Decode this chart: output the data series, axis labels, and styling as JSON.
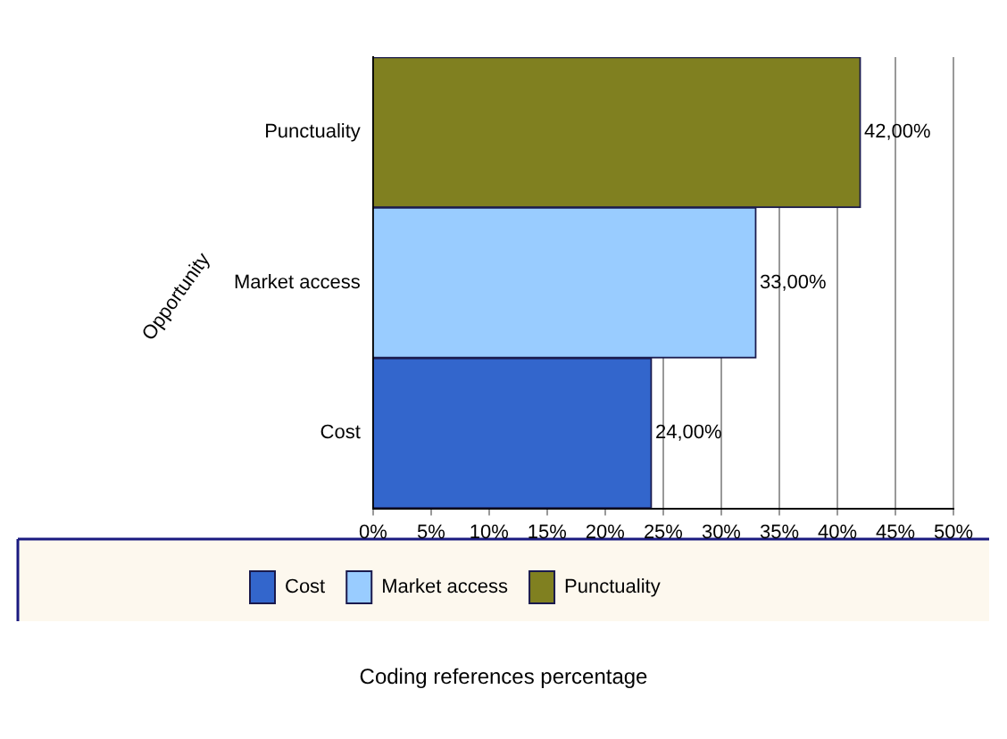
{
  "chart_data": {
    "type": "bar",
    "orientation": "horizontal",
    "stacked": true,
    "categories": [
      "Punctuality",
      "Market access",
      "Cost"
    ],
    "series": [
      {
        "name": "Cost",
        "color": "#3366cc",
        "values": [
          null,
          null,
          24
        ],
        "value_labels": [
          null,
          null,
          "24,00%"
        ]
      },
      {
        "name": "Market access",
        "color": "#99ccff",
        "values": [
          null,
          33,
          null
        ],
        "value_labels": [
          null,
          "33,00%",
          null
        ]
      },
      {
        "name": "Punctuality",
        "color": "#808020",
        "values": [
          42,
          null,
          null
        ],
        "value_labels": [
          "42,00%",
          null,
          null
        ]
      }
    ],
    "xlim": [
      0,
      50
    ],
    "xticks": [
      {
        "value": 0,
        "label": "0%"
      },
      {
        "value": 5,
        "label": "5%"
      },
      {
        "value": 10,
        "label": "10%"
      },
      {
        "value": 15,
        "label": "15%"
      },
      {
        "value": 20,
        "label": "20%"
      },
      {
        "value": 25,
        "label": "25%"
      },
      {
        "value": 30,
        "label": "30%"
      },
      {
        "value": 35,
        "label": "35%"
      },
      {
        "value": 40,
        "label": "40%"
      },
      {
        "value": 45,
        "label": "45%"
      },
      {
        "value": 50,
        "label": "50%"
      }
    ],
    "ylabel": "Opportunity",
    "annotations": [
      "Coding references percentage"
    ],
    "grid": "x",
    "legend": "bottom"
  }
}
